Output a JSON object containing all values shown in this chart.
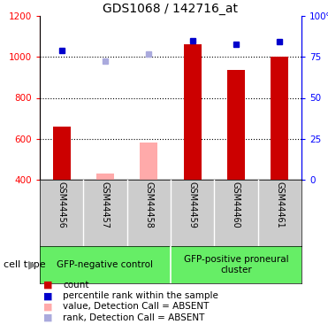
{
  "title": "GDS1068 / 142716_at",
  "samples": [
    "GSM44456",
    "GSM44457",
    "GSM44458",
    "GSM44459",
    "GSM44460",
    "GSM44461"
  ],
  "bar_values": [
    660,
    430,
    580,
    1060,
    935,
    1000
  ],
  "bar_absent": [
    false,
    true,
    true,
    false,
    false,
    false
  ],
  "rank_values": [
    1030,
    980,
    1015,
    1080,
    1060,
    1075
  ],
  "rank_absent": [
    false,
    true,
    true,
    false,
    false,
    false
  ],
  "ylim_left": [
    400,
    1200
  ],
  "yticks_left": [
    400,
    600,
    800,
    1000,
    1200
  ],
  "ylim_right": [
    0,
    100
  ],
  "yticks_right": [
    0,
    25,
    50,
    75,
    100
  ],
  "bar_color_present": "#cc0000",
  "bar_color_absent": "#ffaaaa",
  "rank_color_present": "#0000cc",
  "rank_color_absent": "#aaaadd",
  "cell_groups": [
    {
      "label": "GFP-negative control",
      "start": 0,
      "end": 3
    },
    {
      "label": "GFP-positive proneural\ncluster",
      "start": 3,
      "end": 6
    }
  ],
  "group_color": "#66ee66",
  "tick_bg_color": "#cccccc",
  "cell_type_label": "cell type",
  "dotted_line_values": [
    600,
    800,
    1000
  ],
  "legend_items": [
    {
      "color": "#cc0000",
      "label": "count"
    },
    {
      "color": "#0000cc",
      "label": "percentile rank within the sample"
    },
    {
      "color": "#ffaaaa",
      "label": "value, Detection Call = ABSENT"
    },
    {
      "color": "#aaaadd",
      "label": "rank, Detection Call = ABSENT"
    }
  ],
  "bar_width": 0.4
}
